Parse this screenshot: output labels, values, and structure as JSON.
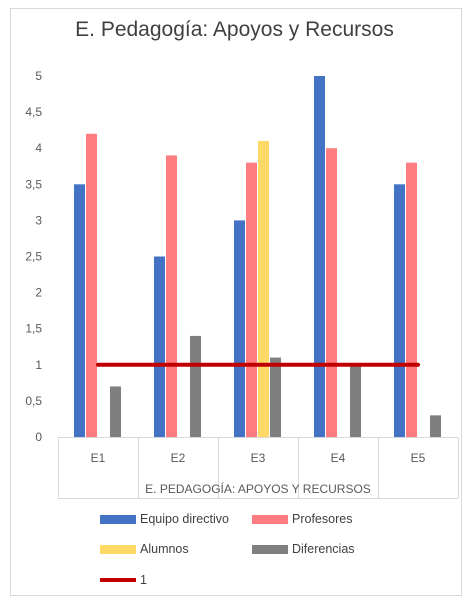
{
  "chart_data": {
    "type": "bar",
    "title": "E. Pedagogía: Apoyos y Recursos",
    "xlabel": "E. PEDAGOGÍA: APOYOS Y RECURSOS",
    "ylabel": "",
    "categories": [
      "E1",
      "E2",
      "E3",
      "E4",
      "E5"
    ],
    "ylim": [
      0,
      5
    ],
    "yticks": [
      "0",
      "0,5",
      "1",
      "1,5",
      "2",
      "2,5",
      "3",
      "3,5",
      "4",
      "4,5",
      "5"
    ],
    "grid": false,
    "legend_position": "bottom",
    "series": [
      {
        "name": "Equipo directivo",
        "color": "#4472C4",
        "values": [
          3.5,
          2.5,
          3.0,
          5.0,
          3.5
        ]
      },
      {
        "name": "Profesores",
        "color": "#FF7C80",
        "values": [
          4.2,
          3.9,
          3.8,
          4.0,
          3.8
        ]
      },
      {
        "name": "Alumnos",
        "color": "#FFD966",
        "values": [
          null,
          null,
          4.1,
          null,
          null
        ]
      },
      {
        "name": "Diferencias",
        "color": "#7F7F7F",
        "values": [
          0.7,
          1.4,
          1.1,
          1.0,
          0.3
        ]
      }
    ],
    "reference_line": {
      "name": "1",
      "value": 1,
      "color": "#C00000"
    }
  }
}
